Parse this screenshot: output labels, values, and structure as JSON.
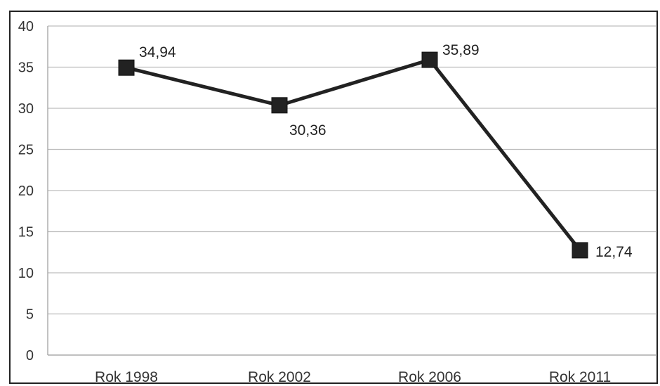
{
  "chart_data": {
    "type": "line",
    "categories": [
      "Rok 1998",
      "Rok 2002",
      "Rok 2006",
      "Rok 2011"
    ],
    "values": [
      34.94,
      30.36,
      35.89,
      12.74
    ],
    "data_labels": [
      "34,94",
      "30,36",
      "35,89",
      "12,74"
    ],
    "yticks": [
      "0",
      "5",
      "10",
      "15",
      "20",
      "25",
      "30",
      "35",
      "40"
    ],
    "ylim": [
      0,
      40
    ],
    "grid": true,
    "legend": "none",
    "colors": {
      "line": "#222222",
      "marker": "#222222",
      "grid": "#bdbdbd",
      "frame": "#222222"
    }
  }
}
